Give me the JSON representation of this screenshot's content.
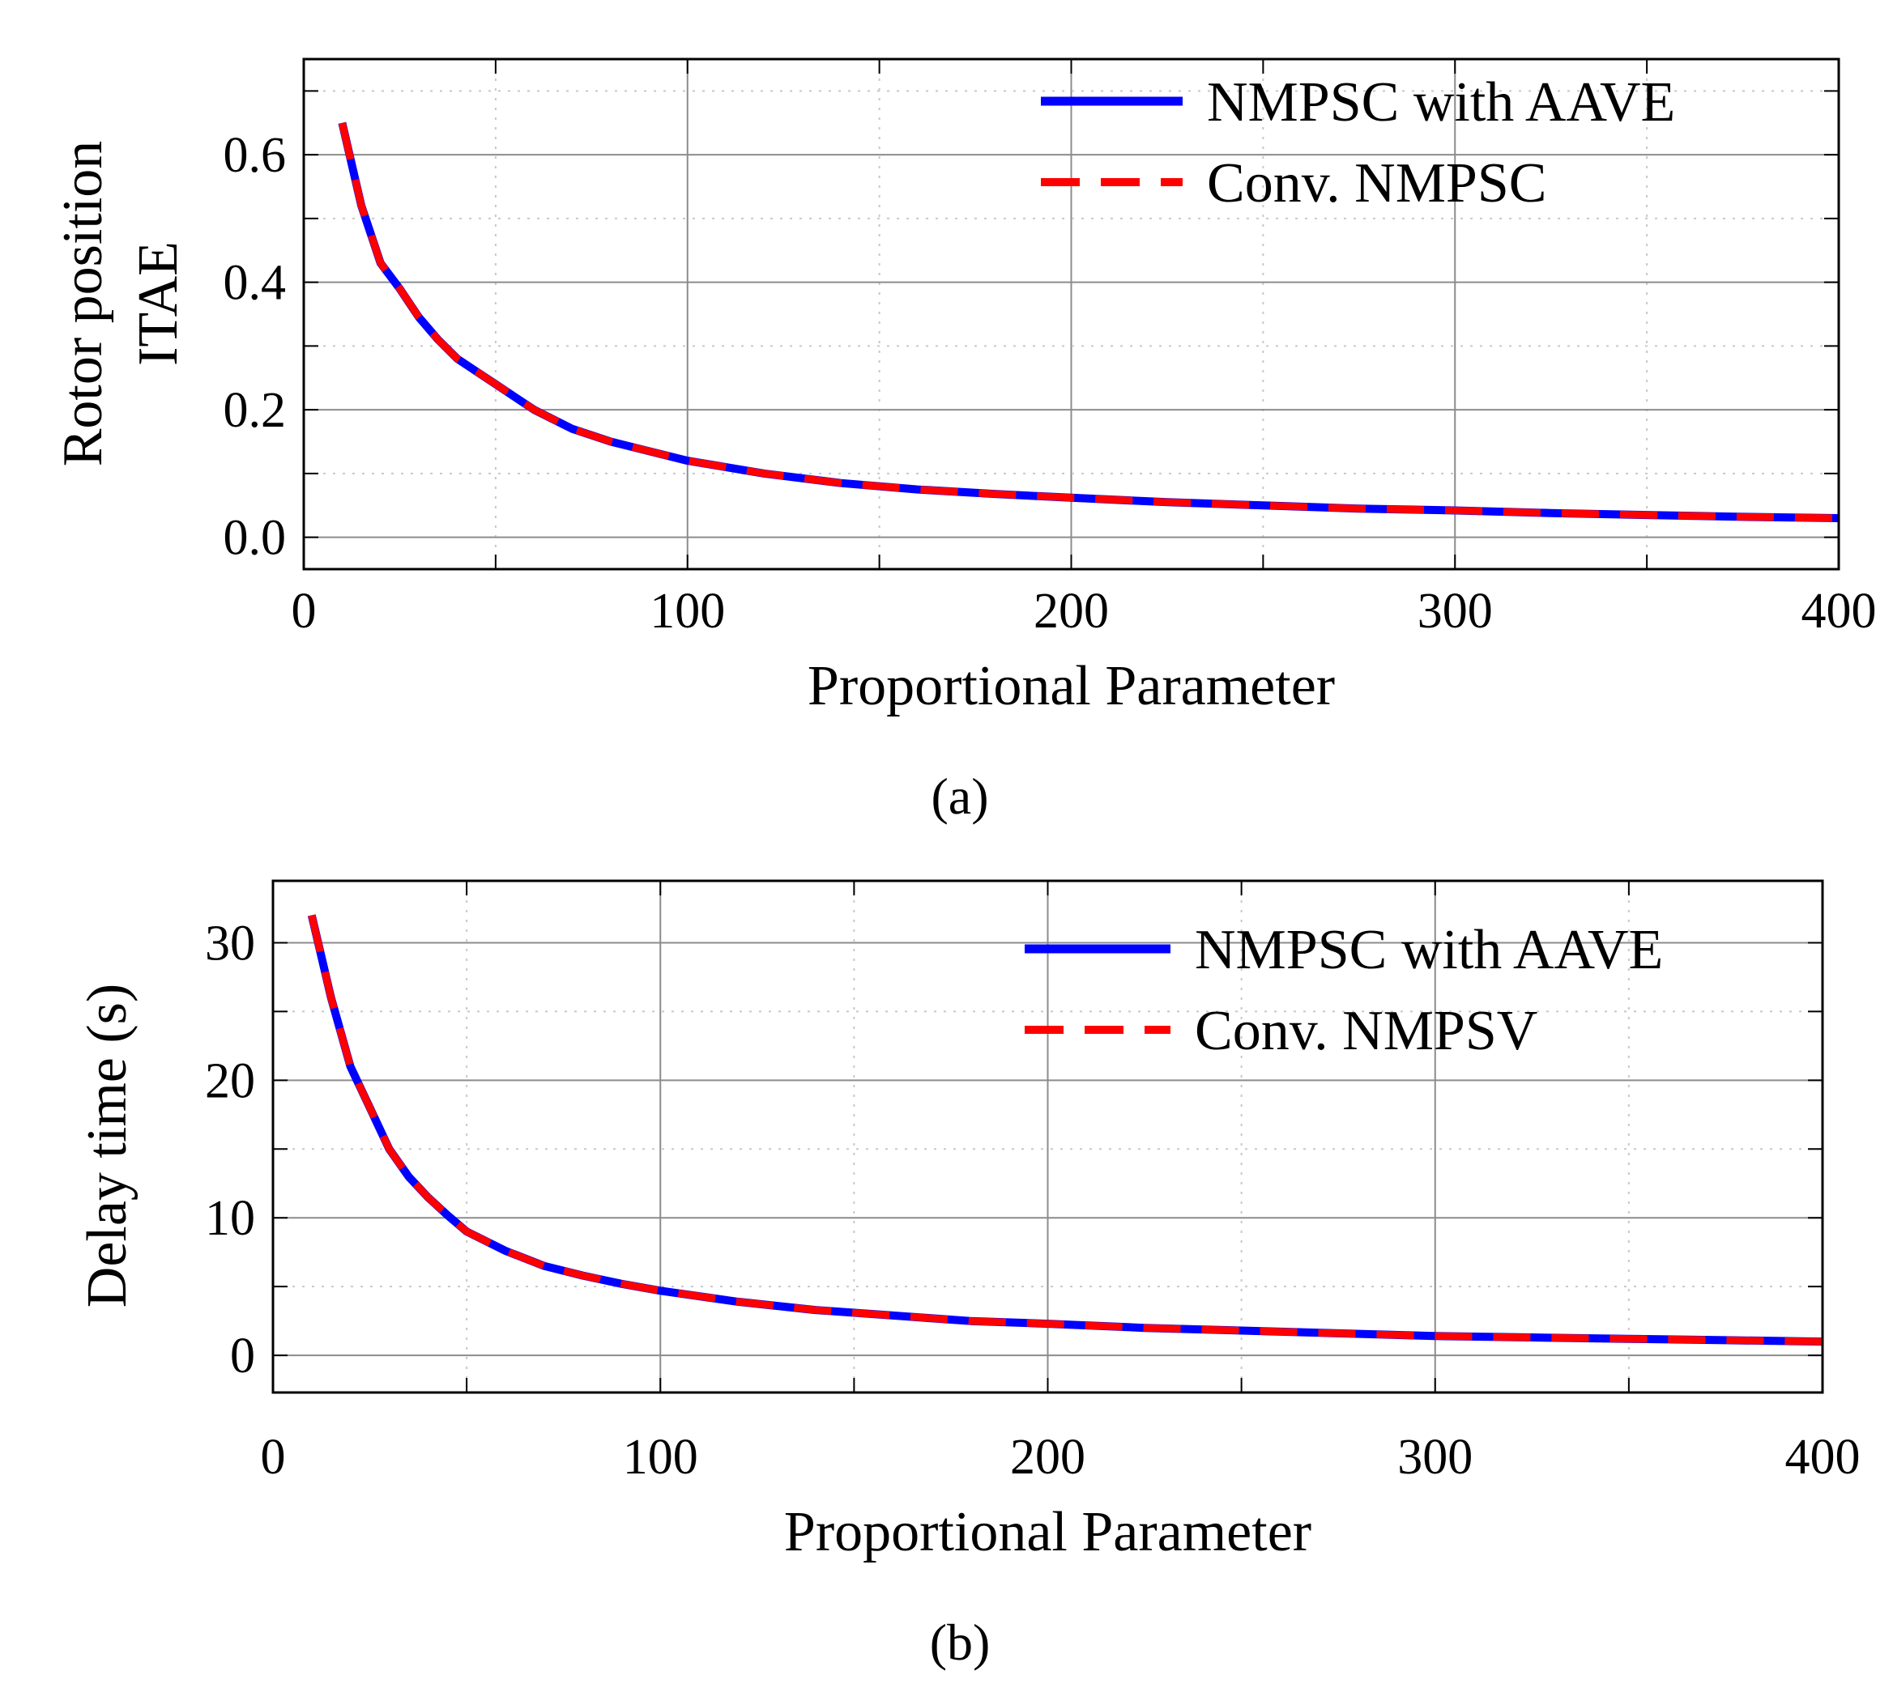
{
  "figure": {
    "caption_a": "(a)",
    "caption_b": "(b)"
  },
  "chart_data": [
    {
      "type": "line",
      "xlabel": "Proportional Parameter",
      "ylabel": [
        "Rotor position",
        "ITAE"
      ],
      "xlim": [
        0,
        400
      ],
      "ylim": [
        -0.05,
        0.75
      ],
      "xticks": [
        "0",
        "100",
        "200",
        "300",
        "400"
      ],
      "yticks": [
        "0.0",
        "0.2",
        "0.4",
        "0.6"
      ],
      "grid": true,
      "legend_position": "top-right",
      "x": [
        10,
        15,
        20,
        25,
        30,
        35,
        40,
        45,
        50,
        60,
        70,
        80,
        90,
        100,
        120,
        140,
        160,
        180,
        200,
        225,
        250,
        275,
        300,
        325,
        350,
        375,
        400
      ],
      "series": [
        {
          "name": "NMPSC with AAVE",
          "color": "#0000ff",
          "style": "solid",
          "values": [
            0.65,
            0.52,
            0.43,
            0.39,
            0.345,
            0.31,
            0.28,
            0.26,
            0.24,
            0.2,
            0.17,
            0.15,
            0.135,
            0.12,
            0.1,
            0.085,
            0.075,
            0.068,
            0.062,
            0.055,
            0.05,
            0.045,
            0.042,
            0.038,
            0.035,
            0.032,
            0.03
          ]
        },
        {
          "name": "Conv. NMPSC",
          "color": "#ff0000",
          "style": "dashed",
          "values": [
            0.65,
            0.52,
            0.43,
            0.39,
            0.345,
            0.31,
            0.28,
            0.26,
            0.24,
            0.2,
            0.17,
            0.15,
            0.135,
            0.12,
            0.1,
            0.085,
            0.075,
            0.068,
            0.062,
            0.055,
            0.05,
            0.045,
            0.042,
            0.038,
            0.035,
            0.032,
            0.03
          ]
        }
      ]
    },
    {
      "type": "line",
      "xlabel": "Proportional Parameter",
      "ylabel": [
        "Delay time (s)"
      ],
      "xlim": [
        0,
        400
      ],
      "ylim": [
        -2.7,
        34.5
      ],
      "xticks": [
        "0",
        "100",
        "200",
        "300",
        "400"
      ],
      "yticks": [
        "0",
        "10",
        "20",
        "30"
      ],
      "grid": true,
      "legend_position": "top-right",
      "x": [
        10,
        15,
        20,
        25,
        30,
        35,
        40,
        45,
        50,
        60,
        70,
        80,
        90,
        100,
        120,
        140,
        160,
        180,
        200,
        225,
        250,
        275,
        300,
        325,
        350,
        375,
        400
      ],
      "series": [
        {
          "name": "NMPSC with AAVE",
          "color": "#0000ff",
          "style": "solid",
          "values": [
            32,
            26,
            21,
            18,
            15,
            13,
            11.5,
            10.2,
            9,
            7.6,
            6.5,
            5.8,
            5.2,
            4.7,
            3.9,
            3.3,
            2.9,
            2.5,
            2.3,
            2.0,
            1.8,
            1.6,
            1.4,
            1.3,
            1.2,
            1.1,
            1.0
          ]
        },
        {
          "name": "Conv. NMPSV",
          "color": "#ff0000",
          "style": "dashed",
          "values": [
            32,
            26,
            21,
            18,
            15,
            13,
            11.5,
            10.2,
            9,
            7.6,
            6.5,
            5.8,
            5.2,
            4.7,
            3.9,
            3.3,
            2.9,
            2.5,
            2.3,
            2.0,
            1.8,
            1.6,
            1.4,
            1.3,
            1.2,
            1.1,
            1.0
          ]
        }
      ]
    }
  ]
}
